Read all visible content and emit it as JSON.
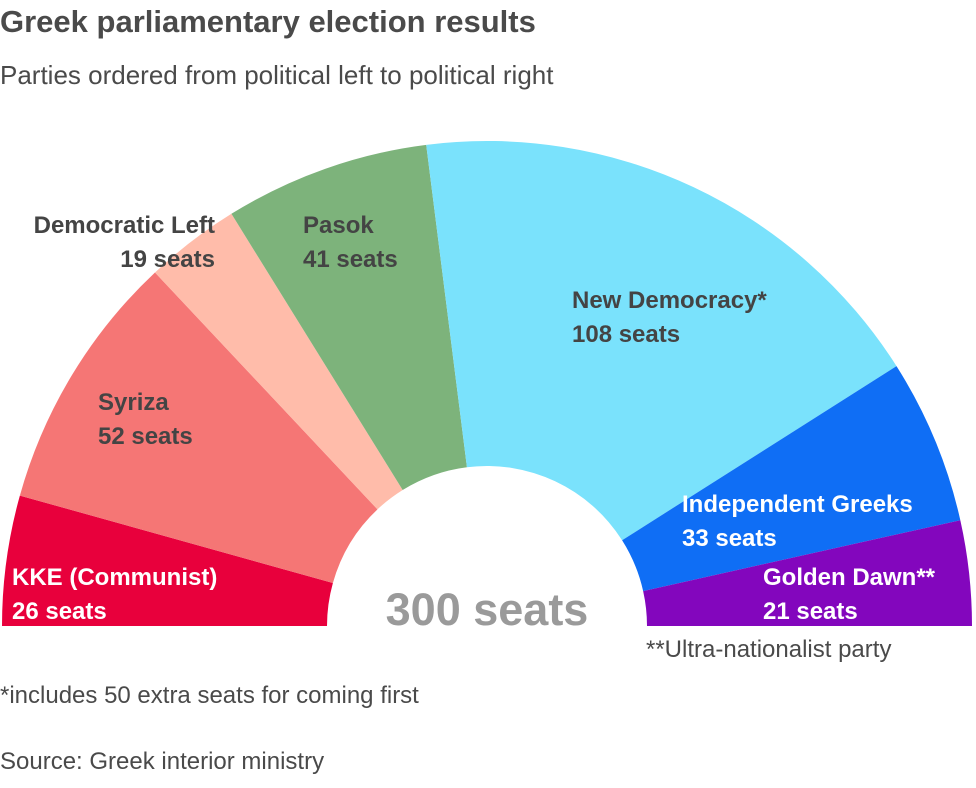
{
  "chart_data": {
    "type": "pie",
    "subtype": "semicircle-parliament",
    "title": "Greek parliamentary election results",
    "subtitle": "Parties ordered from political left to political right",
    "total_label": "300 seats",
    "total_seats": 300,
    "unit": "seats",
    "categories": [
      "KKE (Communist)",
      "Syriza",
      "Democratic Left",
      "Pasok",
      "New Democracy*",
      "Independent Greeks",
      "Golden Dawn**"
    ],
    "values": [
      26,
      52,
      19,
      41,
      108,
      33,
      21
    ],
    "value_labels": [
      "26 seats",
      "52 seats",
      "19 seats",
      "41 seats",
      "108 seats",
      "33 seats",
      "21 seats"
    ],
    "colors": [
      "#e8003c",
      "#f57675",
      "#ffbcaa",
      "#7db37b",
      "#7ae2fc",
      "#0f6ef5",
      "#8306bd"
    ],
    "label_colors": [
      "#ffffff",
      "#444444",
      "#444444",
      "#444444",
      "#444444",
      "#ffffff",
      "#ffffff"
    ],
    "footnotes": {
      "ultra": "**Ultra-nationalist party",
      "extra": "*includes 50 extra seats for coming first",
      "source": "Source: Greek interior ministry"
    }
  }
}
